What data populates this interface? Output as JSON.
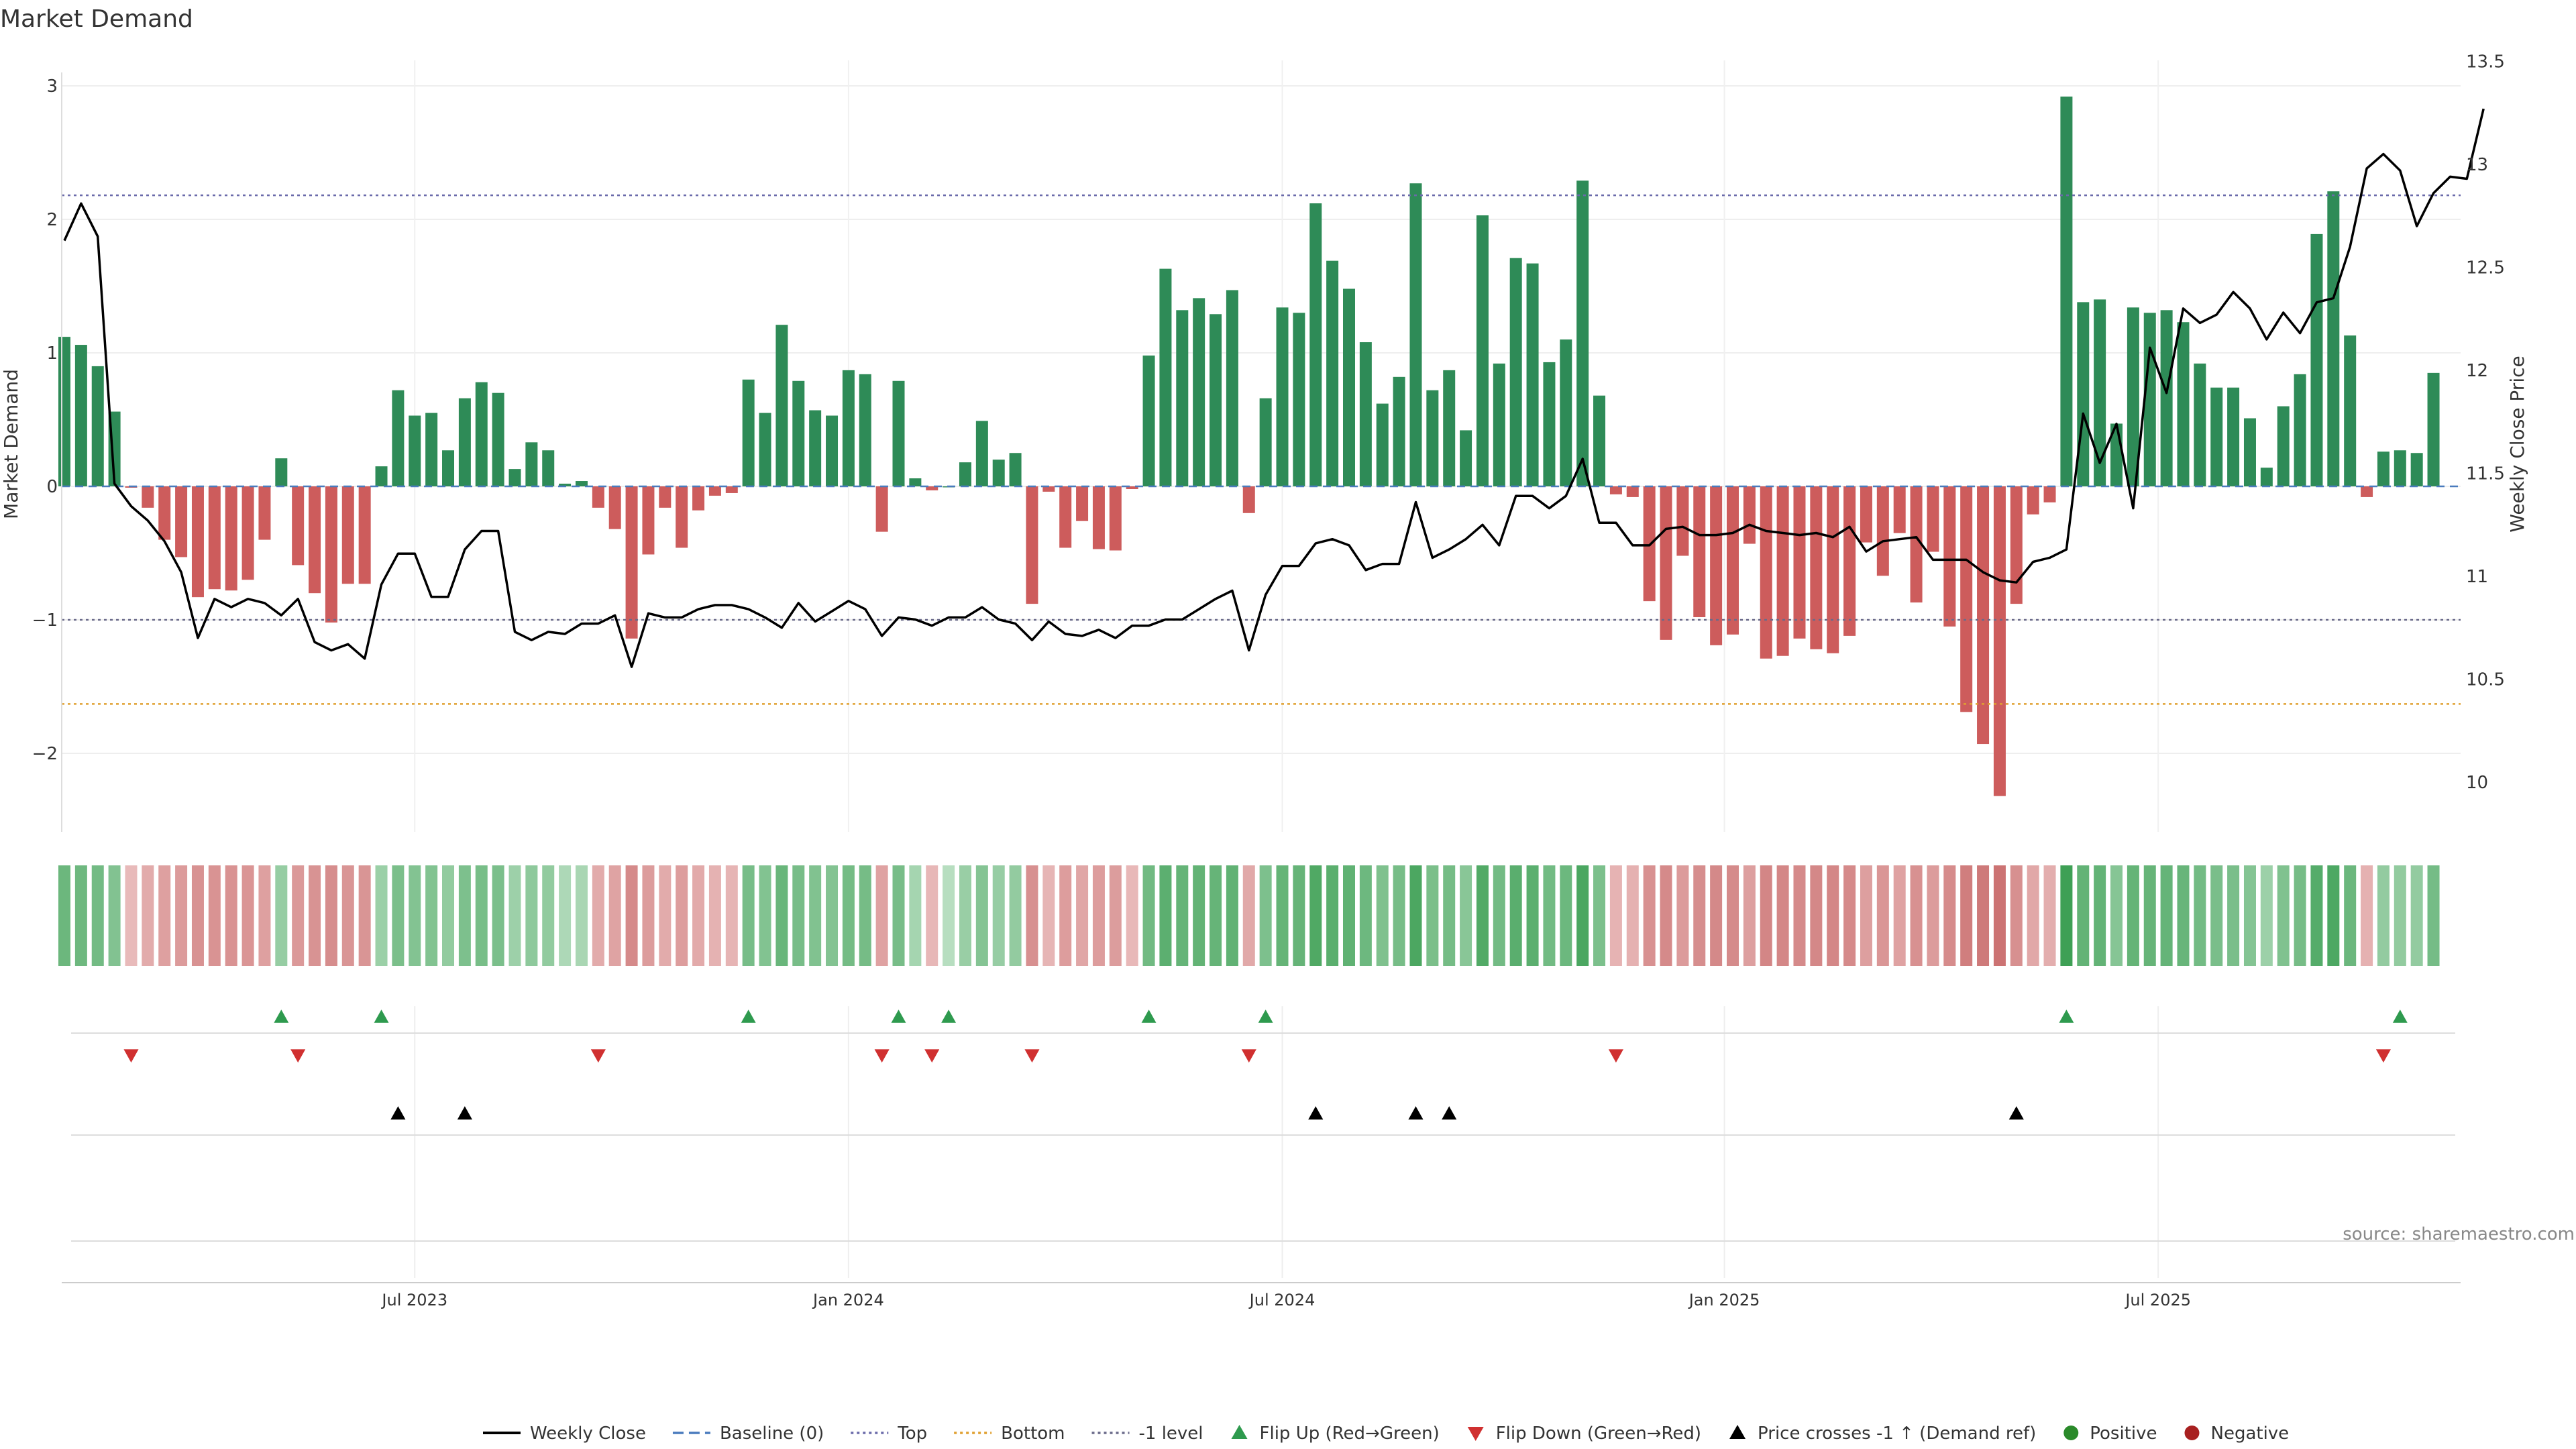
{
  "chart_data": {
    "type": "bar",
    "title": "Market Demand",
    "ylabel_left": "Market Demand",
    "ylabel_right": "Weekly Close Price",
    "ylim_left": [
      -2.6,
      3.15
    ],
    "ylim_right": [
      9.86,
      13.55
    ],
    "y_ticks_left": [
      3,
      2,
      1,
      0,
      -1,
      -2
    ],
    "y_tick_labels_left": [
      "3",
      "2",
      "1",
      "0",
      "−1",
      "−2"
    ],
    "y_ticks_right": [
      13.5,
      13,
      12.5,
      12,
      11.5,
      11,
      10.5,
      10
    ],
    "y_tick_labels_right": [
      "13.5",
      "13",
      "12.5",
      "12",
      "11.5",
      "11",
      "10.5",
      "10"
    ],
    "x_ticks": [
      {
        "week": 21,
        "label": "Jul 2023"
      },
      {
        "week": 47,
        "label": "Jan 2024"
      },
      {
        "week": 73,
        "label": "Jul 2024"
      },
      {
        "week": 99.5,
        "label": "Jan 2025"
      },
      {
        "week": 125.5,
        "label": "Jul 2025"
      }
    ],
    "levels": {
      "top": 2.18,
      "bottom": -1.63,
      "minus_one": -1,
      "baseline": 0
    },
    "series": [
      {
        "name": "Market Demand",
        "values": [
          1.12,
          1.06,
          0.9,
          0.56,
          -0.01,
          -0.16,
          -0.4,
          -0.53,
          -0.83,
          -0.77,
          -0.78,
          -0.7,
          -0.4,
          0.21,
          -0.59,
          -0.8,
          -1.02,
          -0.73,
          -0.73,
          0.15,
          0.72,
          0.53,
          0.55,
          0.27,
          0.66,
          0.78,
          0.7,
          0.13,
          0.33,
          0.27,
          0.02,
          0.04,
          -0.16,
          -0.32,
          -1.14,
          -0.51,
          -0.16,
          -0.46,
          -0.18,
          -0.07,
          -0.05,
          0.8,
          0.55,
          1.21,
          0.79,
          0.57,
          0.53,
          0.87,
          0.84,
          -0.34,
          0.79,
          0.06,
          -0.03,
          0.0,
          0.18,
          0.49,
          0.2,
          0.25,
          -0.88,
          -0.04,
          -0.46,
          -0.26,
          -0.47,
          -0.48,
          -0.02,
          0.98,
          1.63,
          1.32,
          1.41,
          1.29,
          1.47,
          -0.2,
          0.66,
          1.34,
          1.3,
          2.12,
          1.69,
          1.48,
          1.08,
          0.62,
          0.82,
          2.27,
          0.72,
          0.87,
          0.42,
          2.03,
          0.92,
          1.71,
          1.67,
          0.93,
          1.1,
          2.29,
          0.68,
          -0.06,
          -0.08,
          -0.86,
          -1.15,
          -0.52,
          -0.98,
          -1.19,
          -1.11,
          -0.43,
          -1.29,
          -1.27,
          -1.14,
          -1.22,
          -1.25,
          -1.12,
          -0.42,
          -0.67,
          -0.35,
          -0.87,
          -0.49,
          -1.05,
          -1.69,
          -1.93,
          -2.32,
          -0.88,
          -0.21,
          -0.12,
          2.92,
          1.38,
          1.4,
          0.47,
          1.34,
          1.3,
          1.32,
          1.23,
          0.92,
          0.74,
          0.74,
          0.51,
          0.14,
          0.6,
          0.84,
          1.89,
          2.21,
          1.13,
          -0.08,
          0.26,
          0.27,
          0.25,
          0.85
        ]
      },
      {
        "name": "Weekly Close",
        "values": [
          12.63,
          12.81,
          12.65,
          11.45,
          11.34,
          11.27,
          11.17,
          11.02,
          10.7,
          10.89,
          10.85,
          10.89,
          10.87,
          10.81,
          10.89,
          10.68,
          10.64,
          10.67,
          10.6,
          10.96,
          11.11,
          11.11,
          10.9,
          10.9,
          11.13,
          11.22,
          11.22,
          10.73,
          10.69,
          10.73,
          10.72,
          10.77,
          10.77,
          10.81,
          10.56,
          10.82,
          10.8,
          10.8,
          10.84,
          10.86,
          10.86,
          10.84,
          10.8,
          10.75,
          10.87,
          10.78,
          10.83,
          10.88,
          10.84,
          10.71,
          10.8,
          10.79,
          10.76,
          10.8,
          10.8,
          10.85,
          10.79,
          10.77,
          10.69,
          10.78,
          10.72,
          10.71,
          10.74,
          10.7,
          10.76,
          10.76,
          10.79,
          10.79,
          10.84,
          10.89,
          10.93,
          10.64,
          10.91,
          11.05,
          11.05,
          11.16,
          11.18,
          11.15,
          11.03,
          11.06,
          11.06,
          11.36,
          11.09,
          11.13,
          11.18,
          11.25,
          11.15,
          11.39,
          11.39,
          11.33,
          11.39,
          11.57,
          11.26,
          11.26,
          11.15,
          11.15,
          11.23,
          11.24,
          11.2,
          11.2,
          11.21,
          11.25,
          11.22,
          11.21,
          11.2,
          11.21,
          11.19,
          11.24,
          11.12,
          11.17,
          11.18,
          11.19,
          11.08,
          11.08,
          11.08,
          11.02,
          10.98,
          10.97,
          11.07,
          11.09,
          11.13,
          11.79,
          11.55,
          11.74,
          11.33,
          12.11,
          11.89,
          12.3,
          12.23,
          12.27,
          12.38,
          12.3,
          12.15,
          12.28,
          12.18,
          12.33,
          12.35,
          12.6,
          12.98,
          13.05,
          12.97,
          12.7,
          12.86,
          12.94,
          12.93,
          13.27
        ]
      }
    ],
    "flip_up_weeks": [
      13,
      19,
      41,
      50,
      53,
      65,
      72,
      120,
      140
    ],
    "flip_down_weeks": [
      4,
      14,
      32,
      49,
      52,
      58,
      71,
      93,
      139
    ],
    "price_cross_weeks": [
      20,
      24,
      75,
      81,
      83,
      117
    ],
    "source": "source: sharemaestro.com",
    "legend": [
      {
        "label": "Weekly Close",
        "kind": "line",
        "color": "#000000"
      },
      {
        "label": "Baseline (0)",
        "kind": "dash",
        "color": "#4a7bbd"
      },
      {
        "label": "Top",
        "kind": "dot",
        "color": "#6a6aaa"
      },
      {
        "label": "Bottom",
        "kind": "dot",
        "color": "#e0a030"
      },
      {
        "label": "-1 level",
        "kind": "dot",
        "color": "#6a6a8a"
      },
      {
        "label": "Flip Up (Red→Green)",
        "kind": "tri-up",
        "color": "#2e9a4e"
      },
      {
        "label": "Flip Down (Green→Red)",
        "kind": "tri-down",
        "color": "#d03030"
      },
      {
        "label": "Price crosses -1 ↑ (Demand ref)",
        "kind": "tri-up",
        "color": "#000000"
      },
      {
        "label": "Positive",
        "kind": "circle",
        "color": "#2a8a2a"
      },
      {
        "label": "Negative",
        "kind": "circle",
        "color": "#a82020"
      }
    ],
    "colors": {
      "positive_bar": "#2e8b57",
      "negative_bar": "#cd5c5c",
      "price_line": "#000000"
    }
  }
}
